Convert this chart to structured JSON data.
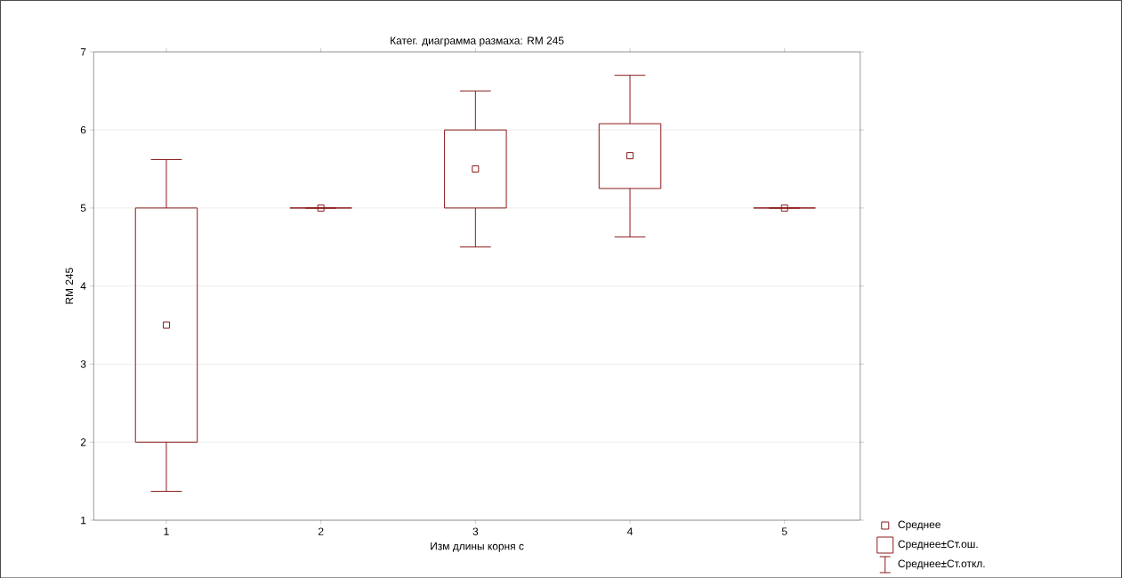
{
  "chart_data": {
    "type": "box",
    "title": "Катег. диаграмма размаха: RM 245",
    "xlabel": "Изм длины  корня с",
    "ylabel": "RM 245",
    "categories": [
      "1",
      "2",
      "3",
      "4",
      "5"
    ],
    "color": "#8b1a1a",
    "boxes": [
      {
        "low": 1.37,
        "q1": 2,
        "q3": 5,
        "high": 5.62,
        "mean": 3.5
      },
      {
        "low": 5,
        "q1": 5,
        "q3": 5,
        "high": 5,
        "mean": 5
      },
      {
        "low": 4.5,
        "q1": 5,
        "q3": 6,
        "high": 6.5,
        "mean": 5.5
      },
      {
        "low": 4.63,
        "q1": 5.25,
        "q3": 6.08,
        "high": 6.7,
        "mean": 5.67
      },
      {
        "low": 5,
        "q1": 5,
        "q3": 5,
        "high": 5,
        "mean": 5
      }
    ],
    "ylim": [
      1,
      7
    ],
    "yticks": [
      1,
      2,
      3,
      4,
      5,
      6,
      7
    ],
    "grid": "y",
    "marker": "square",
    "annotations": [
      "Среднее",
      "Среднее±Ст.ош.",
      "Среднее±Ст.откл."
    ]
  }
}
